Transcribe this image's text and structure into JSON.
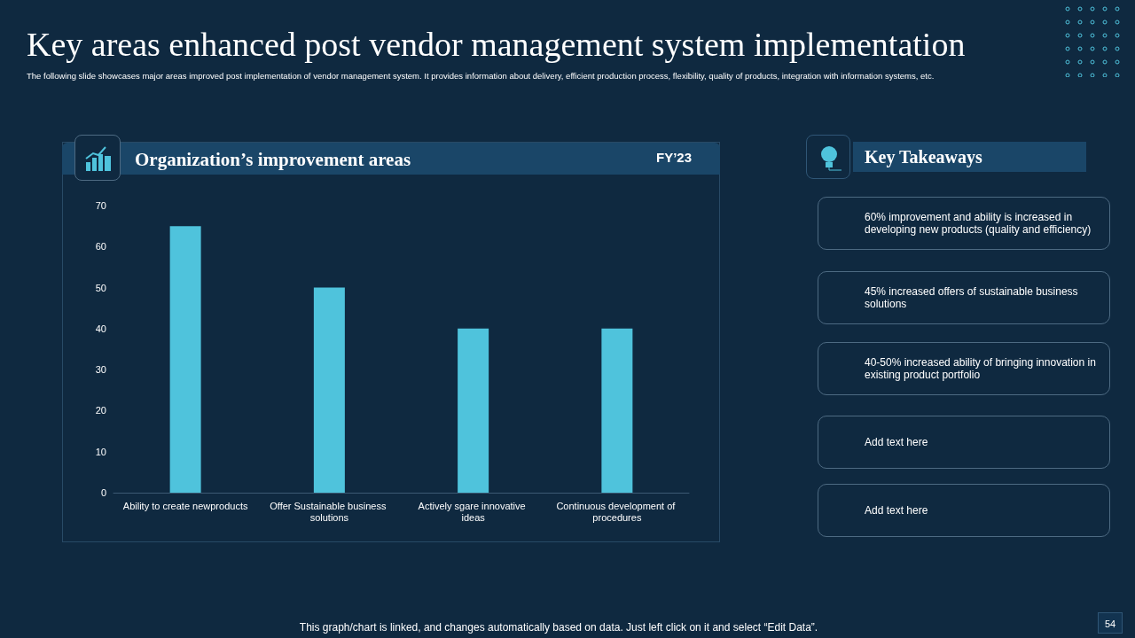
{
  "chart_data": [
    {
      "type": "bar",
      "title": "Key areas enhanced post vendor management system implementation",
      "subtitle": "The following slide showcases major areas improved post implementation  of vendor management system. It provides information about delivery, efficient production process, flexibility, quality of products, integration with information systems, etc.",
      "categories": [
        "Ability to create newproducts",
        "Offer Sustainable business solutions",
        "Actively sgare innovative ideas",
        "Continuous development of procedures"
      ],
      "values": [
        65,
        50,
        40,
        40
      ],
      "color": "#4fc3dc",
      "ylim": [
        0,
        70
      ],
      "yticks": [
        0,
        10,
        20,
        30,
        40,
        50,
        60,
        70
      ],
      "grid": false,
      "annotations": [
        "Organization’s improvement areas",
        "FY’23",
        "This graph/chart is linked, and changes automatically based on data. Just left click on it and select “Edit Data”.",
        "54"
      ]
    },
    {
      "type": "other",
      "title": "Key Takeaways",
      "annotations": [
        "60% improvement and ability is increased in developing new products (quality and efficiency)",
        "45% increased offers of sustainable business solutions",
        "40-50% increased ability of bringing innovation in existing product portfolio",
        "Add text here",
        "Add text here"
      ]
    }
  ]
}
